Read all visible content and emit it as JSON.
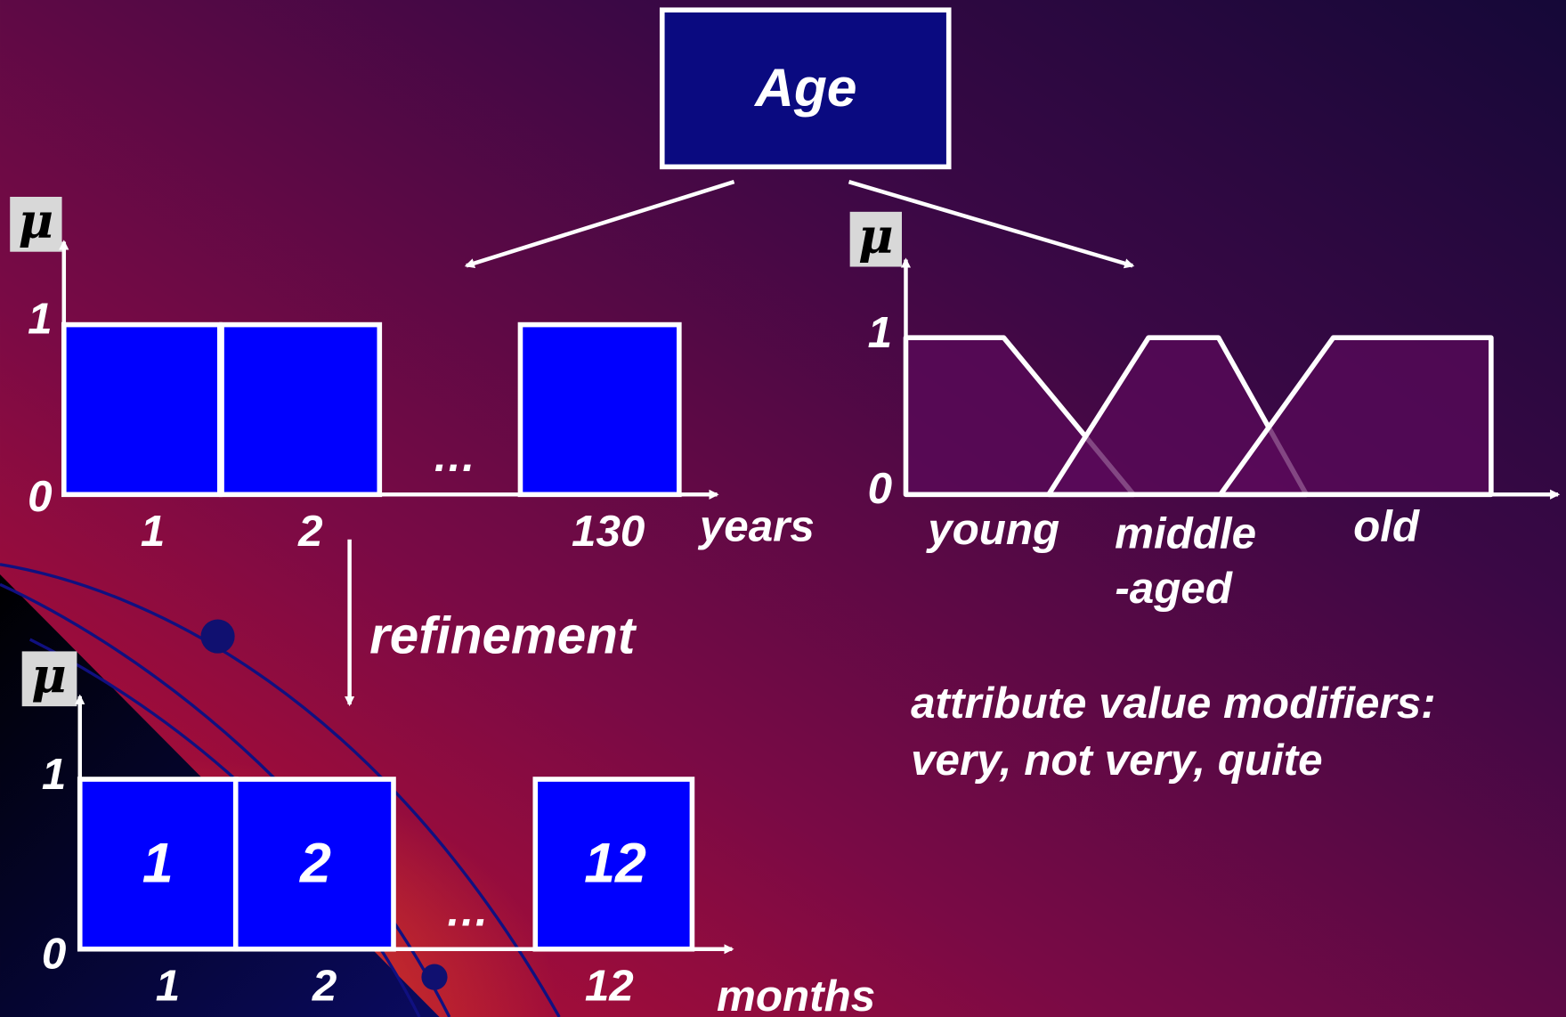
{
  "root": {
    "title": "Age"
  },
  "years_chart": {
    "y_label": "μ",
    "y_top": "1",
    "y_bottom": "0",
    "ellipsis": "…",
    "x_labels": [
      "1",
      "2",
      "130"
    ],
    "unit": "years"
  },
  "refinement": "refinement",
  "months_chart": {
    "y_label": "μ",
    "y_top": "1",
    "y_bottom": "0",
    "ellipsis": "…",
    "bar_labels": [
      "1",
      "2",
      "12"
    ],
    "x_labels": [
      "1",
      "2",
      "12"
    ],
    "unit": "months"
  },
  "fuzzy_chart": {
    "y_label": "μ",
    "y_top": "1",
    "y_bottom": "0",
    "sets": [
      "young",
      "middle",
      "-aged",
      "old"
    ]
  },
  "modifiers": {
    "line1": "attribute value modifiers:",
    "line2": "very, not very, quite"
  }
}
